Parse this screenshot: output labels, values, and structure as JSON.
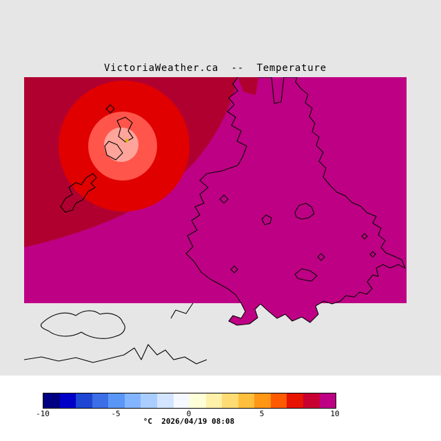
{
  "title": "VictoriaWeather.ca  --  Temperature",
  "map": {
    "background": "#E6E6E6",
    "colors": {
      "field_high": "#BE0084",
      "field_warm": "#B00030",
      "hot_outer": "#E00000",
      "hot_mid": "#FF554B",
      "hot_core": "#FFA49A",
      "coastline": "#000000",
      "station_marker": "#D8B400"
    }
  },
  "colorbar": {
    "units_label": "°C",
    "timestamp": "2026/04/19 08:08",
    "caption": "°C  2026/04/19 08:08",
    "ticks": [
      "-10",
      "-5",
      "0",
      "5",
      "10"
    ],
    "range_min": -10,
    "range_max": 10,
    "segments": [
      "#000082",
      "#0000C8",
      "#1E46D2",
      "#3C6EE6",
      "#5A96F5",
      "#82B4FF",
      "#AACDFF",
      "#D2E4FF",
      "#F5F9FF",
      "#FFFFD7",
      "#FFF0AA",
      "#FFDC73",
      "#FFBE3C",
      "#FF9614",
      "#FF5A00",
      "#E61400",
      "#C80032",
      "#BE0084"
    ]
  }
}
